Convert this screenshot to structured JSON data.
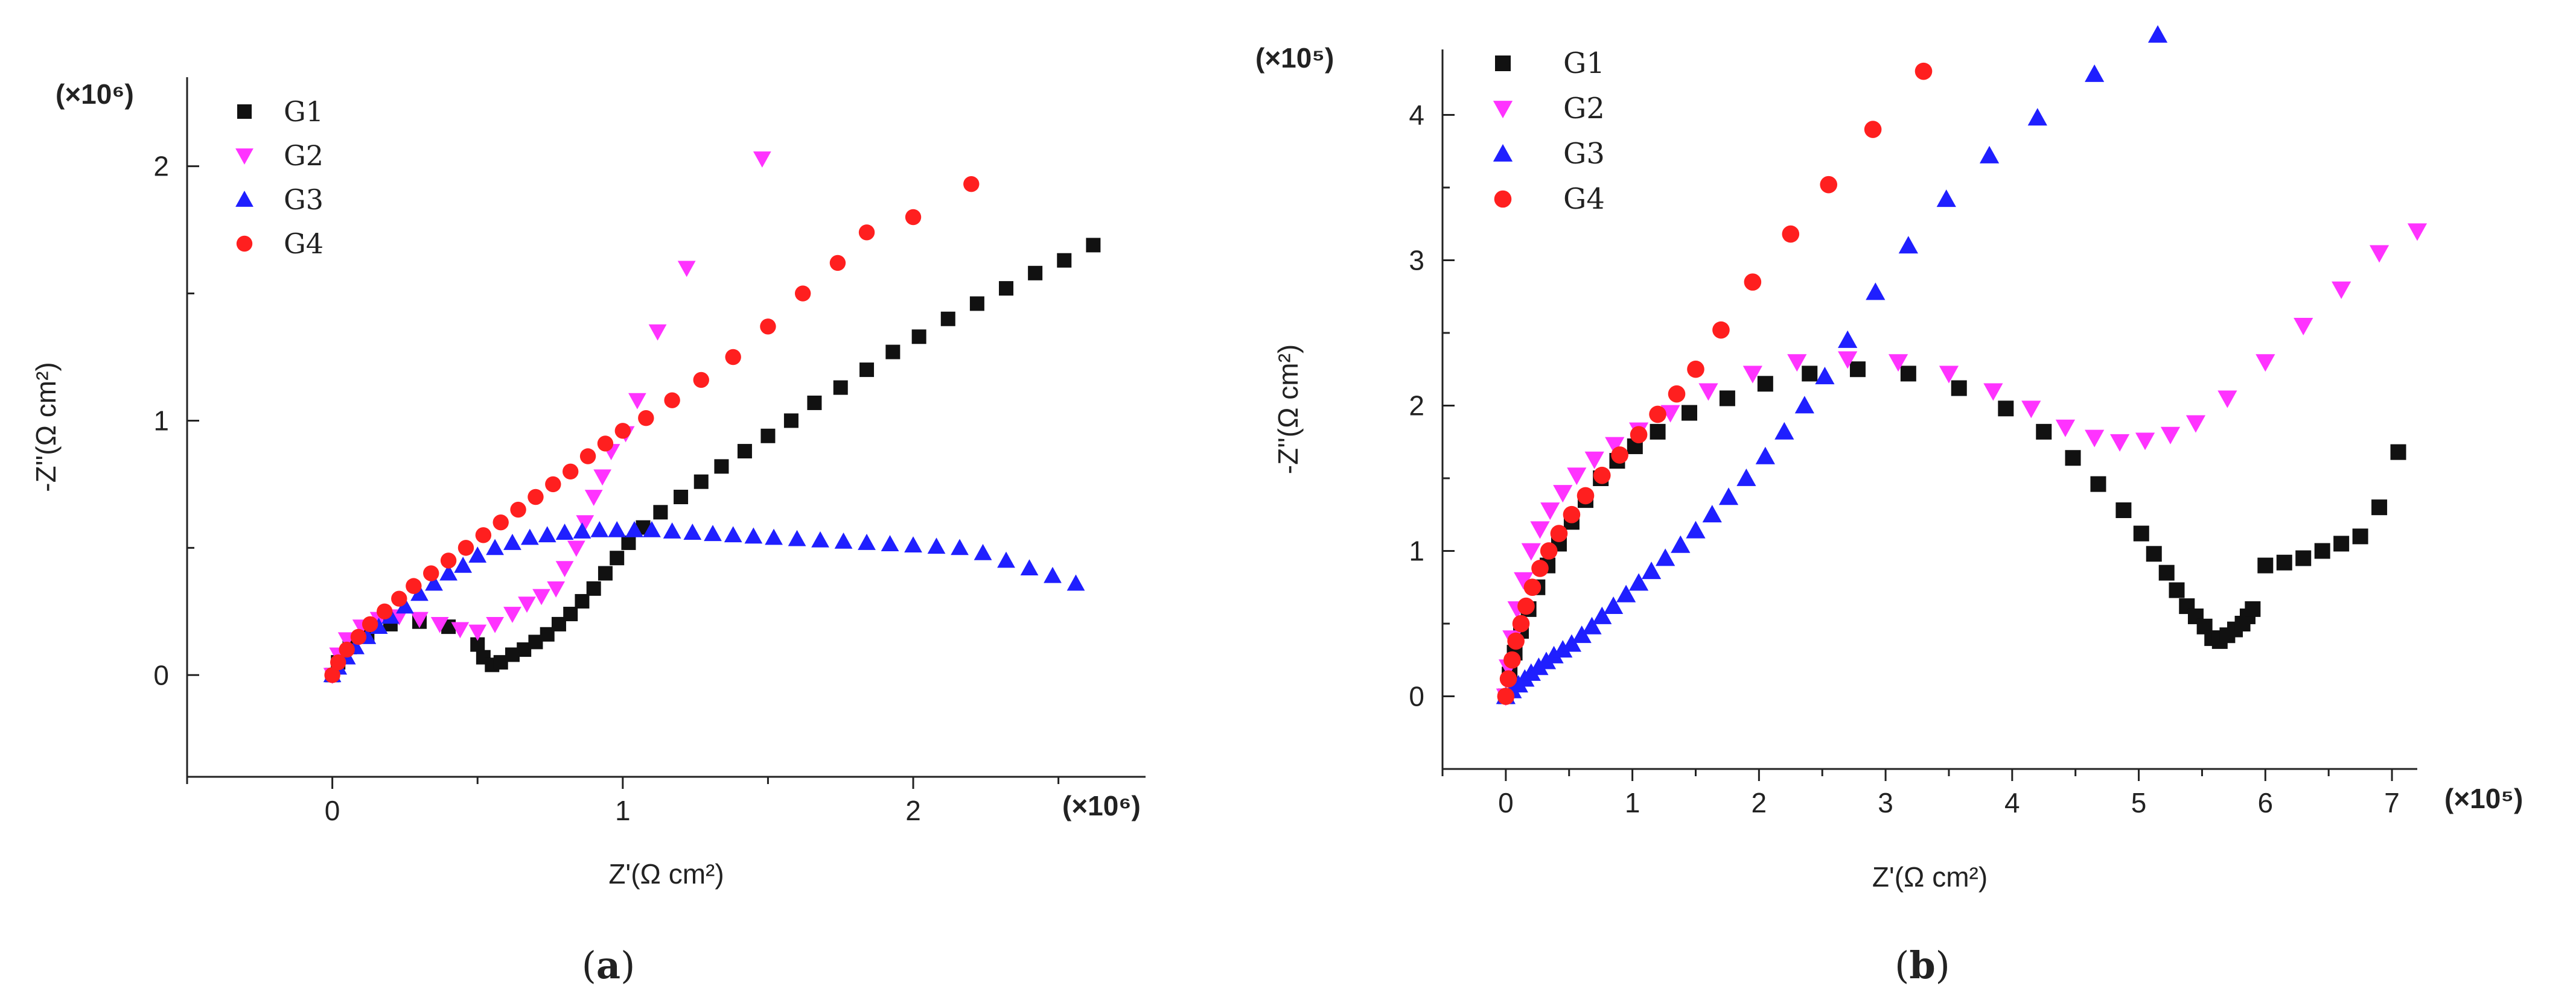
{
  "figure": {
    "panels": [
      {
        "caption_prefix": "(",
        "caption_letter": "a",
        "caption_suffix": ")"
      },
      {
        "caption_prefix": "(",
        "caption_letter": "b",
        "caption_suffix": ")"
      }
    ]
  },
  "colors": {
    "G1": "#111111",
    "G2": "#ff33ff",
    "G3": "#1f1fff",
    "G4": "#ff1f1f"
  },
  "chart_data": [
    {
      "type": "scatter",
      "panel": "a",
      "title": "",
      "xlabel": "Z'(Ω cm²)",
      "ylabel": "-Z''(Ω cm²)",
      "x_multiplier": "(×10⁶)",
      "y_multiplier": "(×10⁶)",
      "xlim": [
        -0.5,
        2.8
      ],
      "ylim": [
        -0.4,
        2.35
      ],
      "xticks": [
        0,
        1,
        2
      ],
      "xtick_labels": [
        "0",
        "1",
        "2"
      ],
      "yticks": [
        0,
        1,
        2
      ],
      "ytick_labels": [
        "0",
        "1",
        "2"
      ],
      "legend_position": "top-left",
      "series": [
        {
          "name": "G1",
          "marker": "square",
          "x": [
            0.0,
            0.02,
            0.06,
            0.12,
            0.2,
            0.3,
            0.4,
            0.5,
            0.52,
            0.55,
            0.58,
            0.62,
            0.66,
            0.7,
            0.74,
            0.78,
            0.82,
            0.86,
            0.9,
            0.94,
            0.98,
            1.02,
            1.07,
            1.13,
            1.2,
            1.27,
            1.34,
            1.42,
            1.5,
            1.58,
            1.66,
            1.75,
            1.84,
            1.93,
            2.02,
            2.12,
            2.22,
            2.32,
            2.42,
            2.52,
            2.62
          ],
          "y": [
            0.0,
            0.05,
            0.11,
            0.16,
            0.2,
            0.21,
            0.19,
            0.12,
            0.07,
            0.04,
            0.05,
            0.08,
            0.1,
            0.13,
            0.16,
            0.2,
            0.24,
            0.29,
            0.34,
            0.4,
            0.46,
            0.52,
            0.58,
            0.64,
            0.7,
            0.76,
            0.82,
            0.88,
            0.94,
            1.0,
            1.07,
            1.13,
            1.2,
            1.27,
            1.33,
            1.4,
            1.46,
            1.52,
            1.58,
            1.63,
            1.69
          ]
        },
        {
          "name": "G2",
          "marker": "triangle-down",
          "x": [
            0.0,
            0.02,
            0.05,
            0.1,
            0.16,
            0.23,
            0.3,
            0.37,
            0.44,
            0.5,
            0.56,
            0.62,
            0.67,
            0.72,
            0.77,
            0.8,
            0.84,
            0.87,
            0.9,
            0.93,
            0.96,
            1.01,
            1.05,
            1.12,
            1.22,
            1.48
          ],
          "y": [
            0.0,
            0.08,
            0.14,
            0.19,
            0.22,
            0.23,
            0.22,
            0.2,
            0.18,
            0.17,
            0.2,
            0.24,
            0.28,
            0.31,
            0.34,
            0.42,
            0.5,
            0.6,
            0.7,
            0.78,
            0.88,
            0.95,
            1.08,
            1.35,
            1.6,
            2.03
          ]
        },
        {
          "name": "G3",
          "marker": "triangle-up",
          "x": [
            0.0,
            0.02,
            0.05,
            0.08,
            0.12,
            0.16,
            0.2,
            0.25,
            0.3,
            0.35,
            0.4,
            0.45,
            0.5,
            0.56,
            0.62,
            0.68,
            0.74,
            0.8,
            0.86,
            0.92,
            0.98,
            1.04,
            1.1,
            1.17,
            1.24,
            1.31,
            1.38,
            1.45,
            1.52,
            1.6,
            1.68,
            1.76,
            1.84,
            1.92,
            2.0,
            2.08,
            2.16,
            2.24,
            2.32,
            2.4,
            2.48,
            2.56
          ],
          "y": [
            0.0,
            0.03,
            0.07,
            0.11,
            0.15,
            0.19,
            0.23,
            0.27,
            0.32,
            0.36,
            0.4,
            0.43,
            0.47,
            0.5,
            0.52,
            0.54,
            0.55,
            0.56,
            0.565,
            0.57,
            0.57,
            0.57,
            0.57,
            0.565,
            0.56,
            0.555,
            0.55,
            0.545,
            0.54,
            0.535,
            0.53,
            0.525,
            0.52,
            0.515,
            0.51,
            0.505,
            0.5,
            0.48,
            0.45,
            0.42,
            0.39,
            0.36
          ]
        },
        {
          "name": "G4",
          "marker": "circle",
          "x": [
            0.0,
            0.02,
            0.05,
            0.09,
            0.13,
            0.18,
            0.23,
            0.28,
            0.34,
            0.4,
            0.46,
            0.52,
            0.58,
            0.64,
            0.7,
            0.76,
            0.82,
            0.88,
            0.94,
            1.0,
            1.08,
            1.17,
            1.27,
            1.38,
            1.5,
            1.62,
            1.74,
            1.84,
            2.0,
            2.2
          ],
          "y": [
            0.0,
            0.05,
            0.1,
            0.15,
            0.2,
            0.25,
            0.3,
            0.35,
            0.4,
            0.45,
            0.5,
            0.55,
            0.6,
            0.65,
            0.7,
            0.75,
            0.8,
            0.86,
            0.91,
            0.96,
            1.01,
            1.08,
            1.16,
            1.25,
            1.37,
            1.5,
            1.62,
            1.74,
            1.8,
            1.93
          ]
        }
      ]
    },
    {
      "type": "scatter",
      "panel": "b",
      "title": "",
      "xlabel": "Z'(Ω cm²)",
      "ylabel": "-Z''(Ω cm²)",
      "x_multiplier": "(×10⁵)",
      "y_multiplier": "(×10⁵)",
      "xlim": [
        -0.5,
        7.2
      ],
      "ylim": [
        -0.5,
        4.45
      ],
      "xticks": [
        0,
        1,
        2,
        3,
        4,
        5,
        6,
        7
      ],
      "xtick_labels": [
        "0",
        "1",
        "2",
        "3",
        "4",
        "5",
        "6",
        "7"
      ],
      "yticks": [
        0,
        1,
        2,
        3,
        4
      ],
      "ytick_labels": [
        "0",
        "1",
        "2",
        "3",
        "4"
      ],
      "legend_position": "top-left",
      "series": [
        {
          "name": "G1",
          "marker": "square",
          "x": [
            0.0,
            0.03,
            0.07,
            0.12,
            0.18,
            0.25,
            0.33,
            0.42,
            0.52,
            0.63,
            0.75,
            0.88,
            1.02,
            1.2,
            1.45,
            1.75,
            2.05,
            2.4,
            2.78,
            3.18,
            3.58,
            3.95,
            4.25,
            4.48,
            4.68,
            4.88,
            5.02,
            5.12,
            5.22,
            5.3,
            5.38,
            5.45,
            5.52,
            5.58,
            5.64,
            5.7,
            5.76,
            5.82,
            5.86,
            5.9,
            6.0,
            6.15,
            6.3,
            6.45,
            6.6,
            6.75,
            6.9,
            7.05
          ],
          "y": [
            0.0,
            0.15,
            0.3,
            0.45,
            0.6,
            0.75,
            0.9,
            1.05,
            1.2,
            1.35,
            1.5,
            1.62,
            1.72,
            1.82,
            1.95,
            2.05,
            2.15,
            2.22,
            2.25,
            2.22,
            2.12,
            1.98,
            1.82,
            1.64,
            1.46,
            1.28,
            1.12,
            0.98,
            0.85,
            0.73,
            0.62,
            0.55,
            0.48,
            0.4,
            0.38,
            0.42,
            0.46,
            0.5,
            0.55,
            0.6,
            0.9,
            0.92,
            0.95,
            1.0,
            1.05,
            1.1,
            1.3,
            1.68
          ]
        },
        {
          "name": "G2",
          "marker": "triangle-down",
          "x": [
            0.0,
            0.02,
            0.05,
            0.09,
            0.14,
            0.2,
            0.27,
            0.35,
            0.45,
            0.56,
            0.7,
            0.86,
            1.05,
            1.3,
            1.6,
            1.95,
            2.3,
            2.7,
            3.1,
            3.5,
            3.85,
            4.15,
            4.42,
            4.65,
            4.85,
            5.05,
            5.25,
            5.45,
            5.7,
            6.0,
            6.3,
            6.6,
            6.9,
            7.2
          ],
          "y": [
            0.0,
            0.2,
            0.4,
            0.6,
            0.8,
            1.0,
            1.15,
            1.28,
            1.4,
            1.52,
            1.63,
            1.73,
            1.83,
            1.95,
            2.1,
            2.22,
            2.3,
            2.32,
            2.3,
            2.22,
            2.1,
            1.98,
            1.85,
            1.78,
            1.75,
            1.76,
            1.8,
            1.88,
            2.05,
            2.3,
            2.55,
            2.8,
            3.05,
            3.2
          ]
        },
        {
          "name": "G3",
          "marker": "triangle-up",
          "x": [
            0.0,
            0.05,
            0.1,
            0.15,
            0.2,
            0.26,
            0.32,
            0.38,
            0.45,
            0.52,
            0.6,
            0.68,
            0.76,
            0.85,
            0.95,
            1.05,
            1.15,
            1.26,
            1.38,
            1.5,
            1.63,
            1.76,
            1.9,
            2.05,
            2.2,
            2.36,
            2.52,
            2.7,
            2.92,
            3.18,
            3.48,
            3.82,
            4.2,
            4.65,
            5.15
          ],
          "y": [
            0.0,
            0.04,
            0.08,
            0.12,
            0.16,
            0.2,
            0.24,
            0.28,
            0.32,
            0.36,
            0.42,
            0.48,
            0.55,
            0.62,
            0.7,
            0.78,
            0.86,
            0.95,
            1.04,
            1.14,
            1.25,
            1.37,
            1.5,
            1.65,
            1.82,
            2.0,
            2.2,
            2.45,
            2.78,
            3.1,
            3.42,
            3.72,
            3.98,
            4.28,
            4.55
          ]
        },
        {
          "name": "G4",
          "marker": "circle",
          "x": [
            0.0,
            0.02,
            0.05,
            0.08,
            0.12,
            0.16,
            0.21,
            0.27,
            0.34,
            0.42,
            0.52,
            0.63,
            0.76,
            0.9,
            1.05,
            1.2,
            1.35,
            1.5,
            1.7,
            1.95,
            2.25,
            2.55,
            2.9,
            3.3
          ],
          "y": [
            0.0,
            0.12,
            0.25,
            0.38,
            0.5,
            0.62,
            0.75,
            0.88,
            1.0,
            1.12,
            1.25,
            1.38,
            1.52,
            1.66,
            1.8,
            1.94,
            2.08,
            2.25,
            2.52,
            2.85,
            3.18,
            3.52,
            3.9,
            4.3
          ]
        }
      ]
    }
  ]
}
